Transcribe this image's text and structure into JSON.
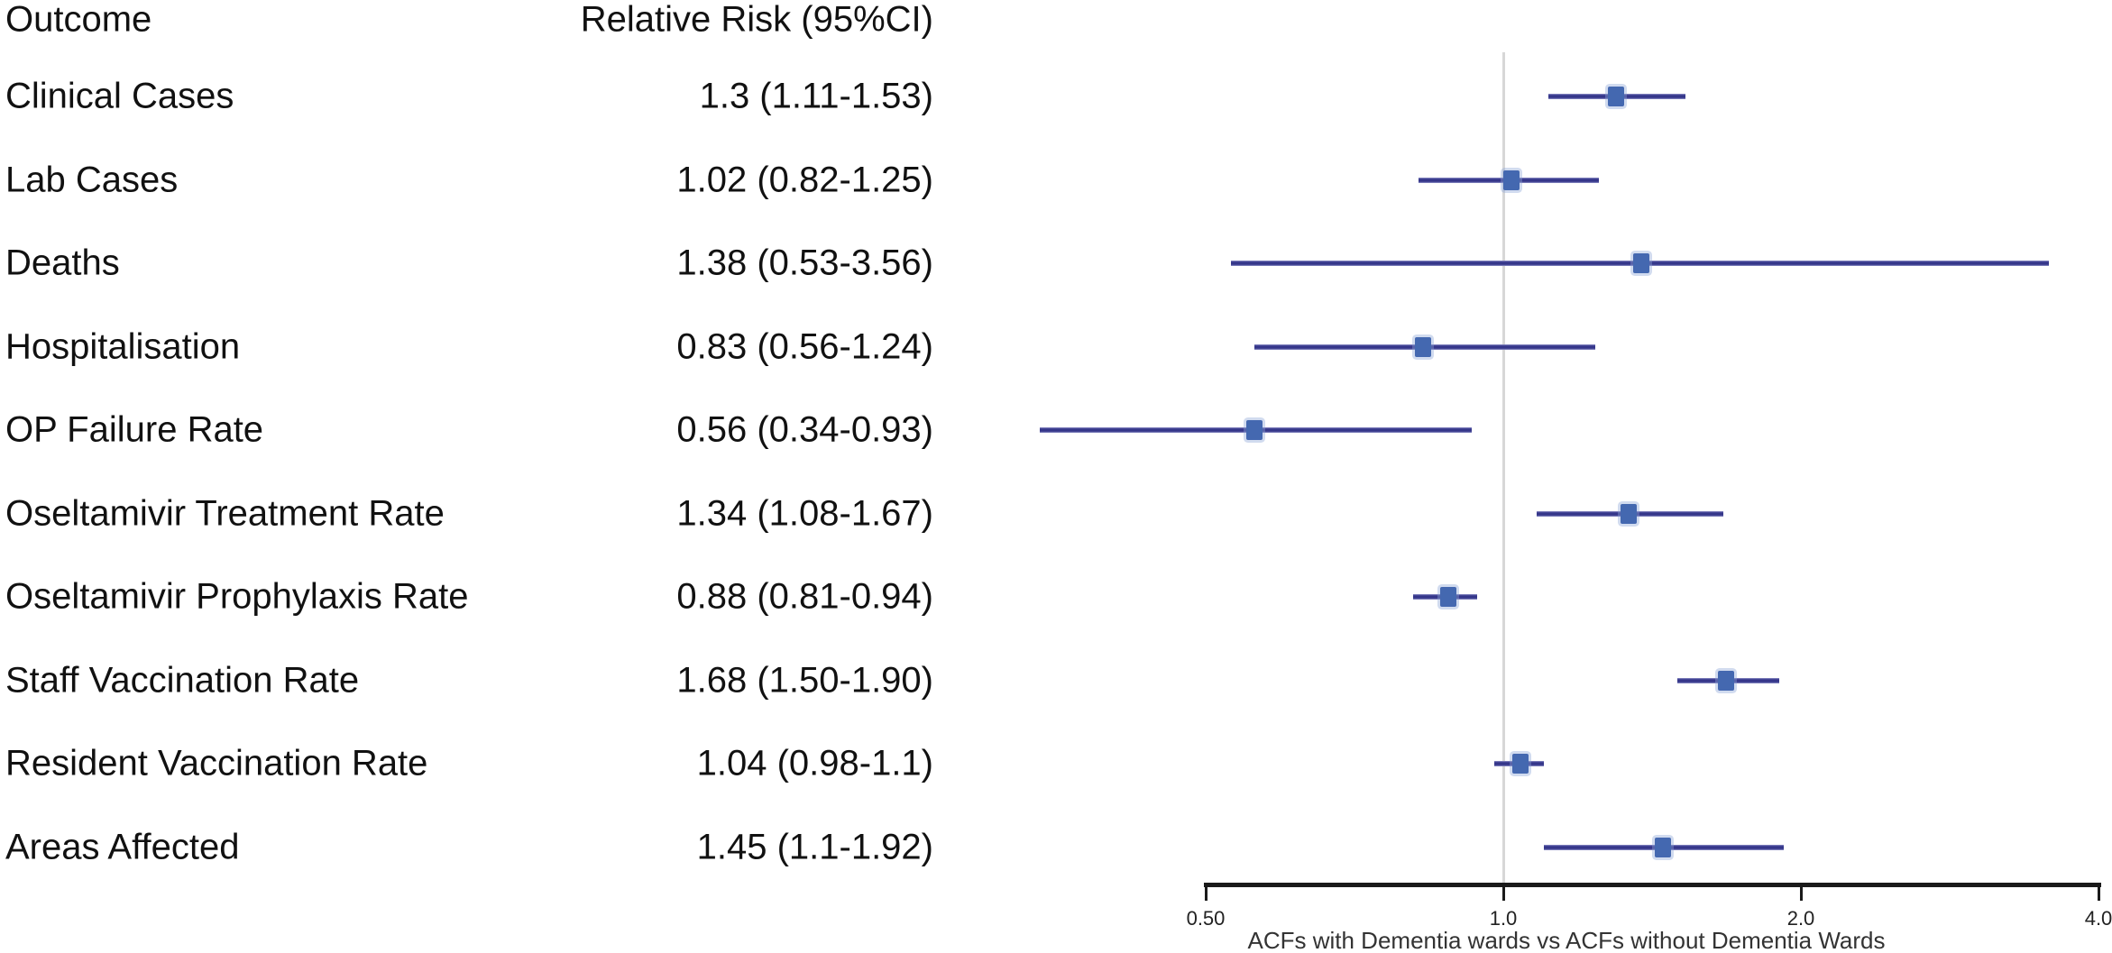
{
  "chart_data": {
    "type": "scatter",
    "subtype": "forest-plot",
    "column_headers": [
      "Outcome",
      "Relative Risk (95%CI)"
    ],
    "rows": [
      {
        "label": "Clinical Cases",
        "rr_text": "1.3 (1.11-1.53)",
        "estimate": 1.3,
        "ci_lower": 1.11,
        "ci_upper": 1.53
      },
      {
        "label": "Lab Cases",
        "rr_text": "1.02 (0.82-1.25)",
        "estimate": 1.02,
        "ci_lower": 0.82,
        "ci_upper": 1.25
      },
      {
        "label": "Deaths",
        "rr_text": "1.38 (0.53-3.56)",
        "estimate": 1.38,
        "ci_lower": 0.53,
        "ci_upper": 3.56
      },
      {
        "label": "Hospitalisation",
        "rr_text": "0.83 (0.56-1.24)",
        "estimate": 0.83,
        "ci_lower": 0.56,
        "ci_upper": 1.24
      },
      {
        "label": "OP Failure Rate",
        "rr_text": "0.56 (0.34-0.93)",
        "estimate": 0.56,
        "ci_lower": 0.34,
        "ci_upper": 0.93
      },
      {
        "label": "Oseltamivir Treatment Rate",
        "rr_text": "1.34 (1.08-1.67)",
        "estimate": 1.34,
        "ci_lower": 1.08,
        "ci_upper": 1.67
      },
      {
        "label": "Oseltamivir Prophylaxis Rate",
        "rr_text": "0.88 (0.81-0.94)",
        "estimate": 0.88,
        "ci_lower": 0.81,
        "ci_upper": 0.94
      },
      {
        "label": "Staff Vaccination Rate",
        "rr_text": "1.68 (1.50-1.90)",
        "estimate": 1.68,
        "ci_lower": 1.5,
        "ci_upper": 1.9
      },
      {
        "label": "Resident Vaccination Rate",
        "rr_text": "1.04 (0.98-1.1)",
        "estimate": 1.04,
        "ci_lower": 0.98,
        "ci_upper": 1.1
      },
      {
        "label": "Areas Affected",
        "rr_text": "1.45 (1.1-1.92)",
        "estimate": 1.45,
        "ci_lower": 1.1,
        "ci_upper": 1.92
      }
    ],
    "xlabel": "ACFs with Dementia wards vs ACFs without Dementia Wards",
    "x_scale": "log",
    "xlim": [
      0.5,
      4.0
    ],
    "x_ticks": [
      0.5,
      1.0,
      2.0,
      4.0
    ],
    "x_tick_labels": [
      "0.50",
      "1.0",
      "2.0",
      "4.0"
    ],
    "reference_line": 1.0,
    "grid": false,
    "legend": "none",
    "style": {
      "marker_color": "#4468b0",
      "ci_line_color": "#3c3d8f",
      "reference_line_color": "#d7d7d7",
      "axis_color": "#1a1a1a",
      "text_color": "#111111"
    }
  }
}
